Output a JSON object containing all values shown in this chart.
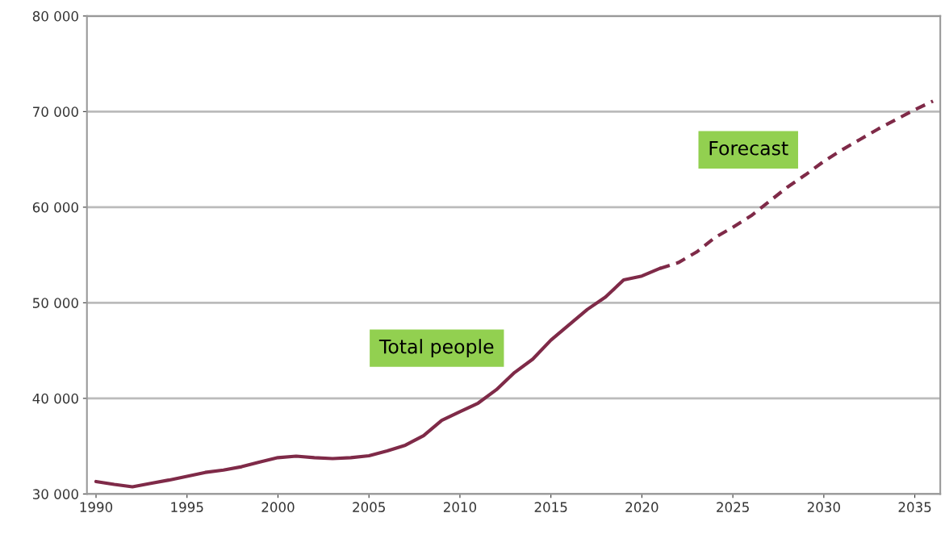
{
  "chart_data": {
    "type": "line",
    "series": [
      {
        "color": "#7f2a48",
        "line_style": "solid",
        "x": [
          1990,
          1991,
          1992,
          1993,
          1994,
          1995,
          1996,
          1997,
          1998,
          1999,
          2000,
          2001,
          2002,
          2003,
          2004,
          2005,
          2006,
          2007,
          2008,
          2009,
          2010,
          2011,
          2012,
          2013,
          2014,
          2015,
          2016,
          2017,
          2018,
          2019,
          2020,
          2021
        ],
        "values": [
          31300,
          31000,
          30750,
          31100,
          31450,
          31850,
          32250,
          32500,
          32850,
          33350,
          33800,
          33950,
          33800,
          33700,
          33800,
          34000,
          34500,
          35100,
          36100,
          37700,
          38600,
          39500,
          40900,
          42700,
          44100,
          46100,
          47700,
          49300,
          50600,
          52400,
          52800,
          53600
        ]
      },
      {
        "color": "#7f2a48",
        "line_style": "dashed",
        "x": [
          2021,
          2022,
          2023,
          2024,
          2025,
          2026,
          2027,
          2028,
          2029,
          2030,
          2031,
          2032,
          2033,
          2034,
          2035,
          2036
        ],
        "values": [
          53600,
          54200,
          55300,
          56800,
          57900,
          59100,
          60600,
          62100,
          63400,
          64800,
          66000,
          67100,
          68200,
          69200,
          70200,
          71100
        ]
      }
    ],
    "xlim": [
      1989.5,
      2036.4
    ],
    "xticks": [
      1990,
      1995,
      2000,
      2005,
      2010,
      2015,
      2020,
      2025,
      2030,
      2035
    ],
    "ylim": [
      30000,
      80000
    ],
    "yticks": [
      {
        "value": 30000,
        "label": "30 000"
      },
      {
        "value": 40000,
        "label": "40 000"
      },
      {
        "value": 50000,
        "label": "50 000"
      },
      {
        "value": 60000,
        "label": "60 000"
      },
      {
        "value": 70000,
        "label": "70 000"
      },
      {
        "value": 80000,
        "label": "80 000"
      }
    ],
    "grid": "y",
    "legend": false,
    "annotations": [
      "Total people",
      "Forecast"
    ]
  }
}
